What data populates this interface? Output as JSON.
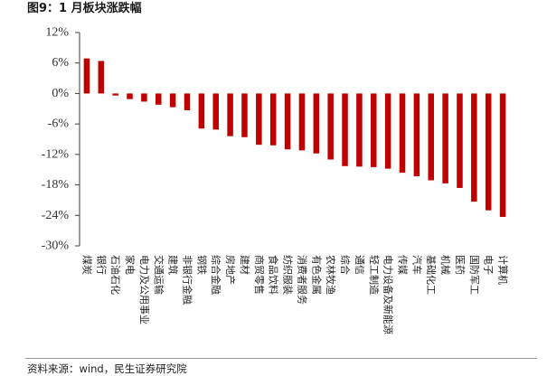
{
  "chart_data": {
    "type": "bar",
    "title": "图9：1 月板块涨跌幅",
    "xlabel": "",
    "ylabel": "",
    "categories": [
      "煤炭",
      "银行",
      "石油石化",
      "家电",
      "电力及公用事业",
      "交通运输",
      "建筑",
      "非银行金融",
      "钢铁",
      "综合金融",
      "房地产",
      "建材",
      "商贸零售",
      "食品饮料",
      "纺织服装",
      "消费者服务",
      "有色金属",
      "农林牧渔",
      "综合",
      "通信",
      "轻工制造",
      "电力设备及新能源",
      "传媒",
      "汽车",
      "基础化工",
      "机械",
      "医药",
      "国防军工",
      "电子",
      "计算机"
    ],
    "values": [
      6.9,
      6.4,
      -0.4,
      -1.1,
      -1.6,
      -2.2,
      -2.7,
      -3.3,
      -6.9,
      -7.1,
      -8.4,
      -8.6,
      -10.1,
      -10.2,
      -11.0,
      -11.2,
      -11.8,
      -13.0,
      -14.3,
      -14.4,
      -14.5,
      -14.8,
      -15.6,
      -16.3,
      -17.1,
      -17.7,
      -18.6,
      -21.3,
      -23.0,
      -24.3
    ],
    "ylim": [
      -30,
      12
    ],
    "yticks": [
      12,
      6,
      0,
      -6,
      -12,
      -18,
      -24,
      -30
    ],
    "ytick_labels": [
      "12%",
      "6%",
      "0%",
      "-6%",
      "-12%",
      "-18%",
      "-24%",
      "-30%"
    ],
    "grid": false,
    "legend": false,
    "bar_color": "#C00000",
    "axis_color": "#404040"
  },
  "source": "资料来源：wind，民生证券研究院"
}
